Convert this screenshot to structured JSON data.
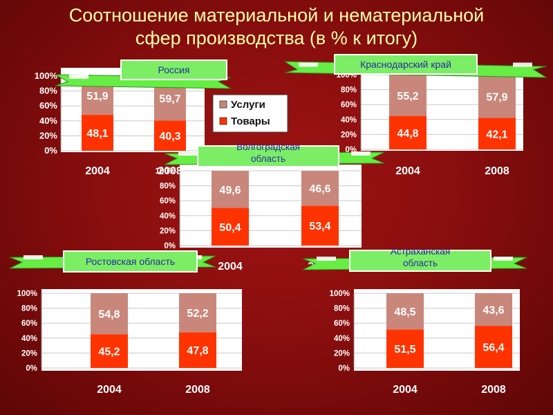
{
  "title": {
    "line1": "Соотношение материальной и нематериальной",
    "line2": "сфер производства (в % к итогу)"
  },
  "colors": {
    "uslugi": "#c8877a",
    "tovary": "#ff3300",
    "banner": "#66ee44",
    "label_box": "#7cee66",
    "label_text": "#2a2aa0",
    "panel": "#ffffff",
    "bar_text": "#ffffff",
    "year_text": "#ffffff"
  },
  "legend": {
    "items": [
      {
        "name": "Услуги",
        "color": "#c8877a"
      },
      {
        "name": "Товары",
        "color": "#ff3300"
      }
    ]
  },
  "chart_data": [
    {
      "type": "bar",
      "stacked": true,
      "title": "Россия",
      "categories": [
        "2004",
        "2008"
      ],
      "series": [
        {
          "name": "Товары",
          "values": [
            48.1,
            40.3
          ]
        },
        {
          "name": "Услуги",
          "values": [
            51.9,
            59.7
          ]
        }
      ],
      "y_ticks": [
        "0%",
        "20%",
        "40%",
        "60%",
        "80%",
        "100%"
      ],
      "ylim": [
        0,
        100
      ],
      "grid": true,
      "legend": "right"
    },
    {
      "type": "bar",
      "stacked": true,
      "title": "Краснодарский край",
      "categories": [
        "2004",
        "2008"
      ],
      "series": [
        {
          "name": "Товары",
          "values": [
            44.8,
            42.1
          ]
        },
        {
          "name": "Услуги",
          "values": [
            55.2,
            57.9
          ]
        }
      ],
      "y_ticks": [
        "0%",
        "20%",
        "40%",
        "60%",
        "80%",
        "100%"
      ],
      "ylim": [
        0,
        100
      ],
      "grid": true
    },
    {
      "type": "bar",
      "stacked": true,
      "title": "Волгоградская область",
      "categories": [
        "2004",
        "2008"
      ],
      "series": [
        {
          "name": "Товары",
          "values": [
            50.4,
            53.4
          ]
        },
        {
          "name": "Услуги",
          "values": [
            49.6,
            46.6
          ]
        }
      ],
      "y_ticks": [
        "0%",
        "20%",
        "40%",
        "60%",
        "80%",
        "100%"
      ],
      "ylim": [
        0,
        100
      ],
      "grid": true
    },
    {
      "type": "bar",
      "stacked": true,
      "title": "Ростовская область",
      "categories": [
        "2004",
        "2008"
      ],
      "series": [
        {
          "name": "Товары",
          "values": [
            45.2,
            47.8
          ]
        },
        {
          "name": "Услуги",
          "values": [
            54.8,
            52.2
          ]
        }
      ],
      "y_ticks": [
        "0%",
        "20%",
        "40%",
        "60%",
        "80%",
        "100%"
      ],
      "ylim": [
        0,
        100
      ],
      "grid": true
    },
    {
      "type": "bar",
      "stacked": true,
      "title": "Астраханская область",
      "categories": [
        "2004",
        "2008"
      ],
      "series": [
        {
          "name": "Товары",
          "values": [
            51.5,
            56.4
          ]
        },
        {
          "name": "Услуги",
          "values": [
            48.5,
            43.6
          ]
        }
      ],
      "y_ticks": [
        "0%",
        "20%",
        "40%",
        "60%",
        "80%",
        "100%"
      ],
      "ylim": [
        0,
        100
      ],
      "grid": true
    }
  ]
}
